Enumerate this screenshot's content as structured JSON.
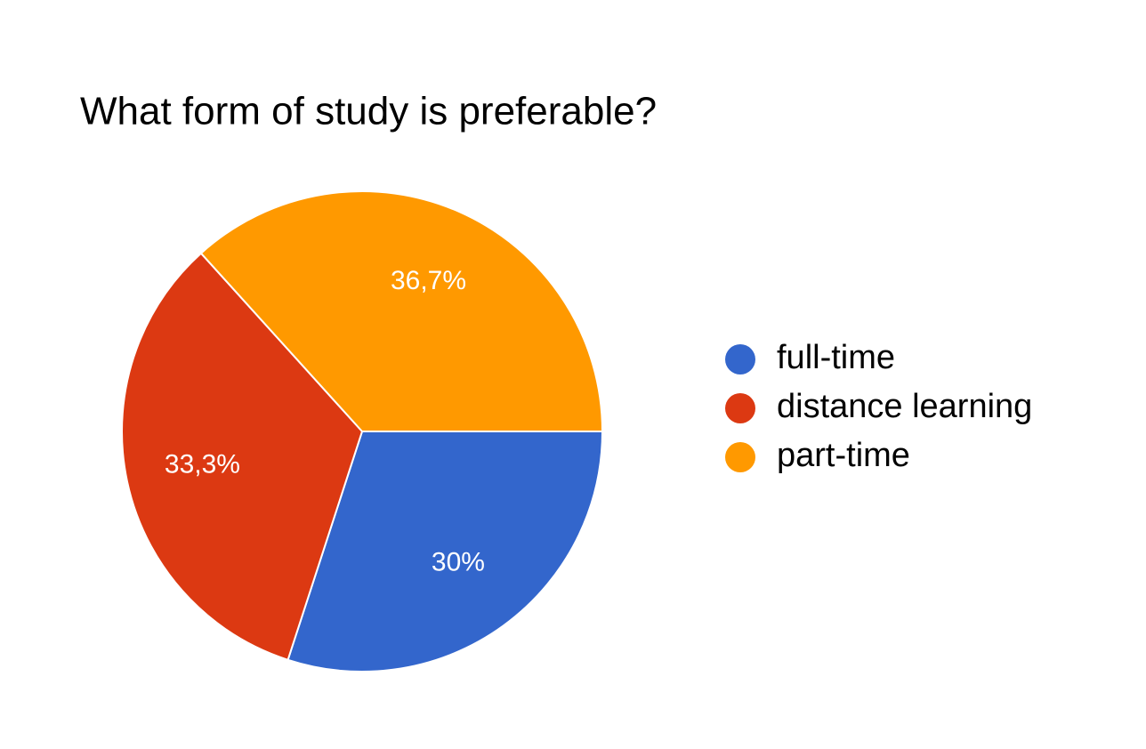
{
  "chart_data": {
    "type": "pie",
    "title": "What form of study is preferable?",
    "categories": [
      "full-time",
      "distance learning",
      "part-time"
    ],
    "values": [
      30,
      33.3,
      36.7
    ],
    "value_labels": [
      "30%",
      "33,3%",
      "36,7%"
    ],
    "colors": [
      "#3366cc",
      "#dc3912",
      "#ff9900"
    ],
    "legend": "right"
  }
}
